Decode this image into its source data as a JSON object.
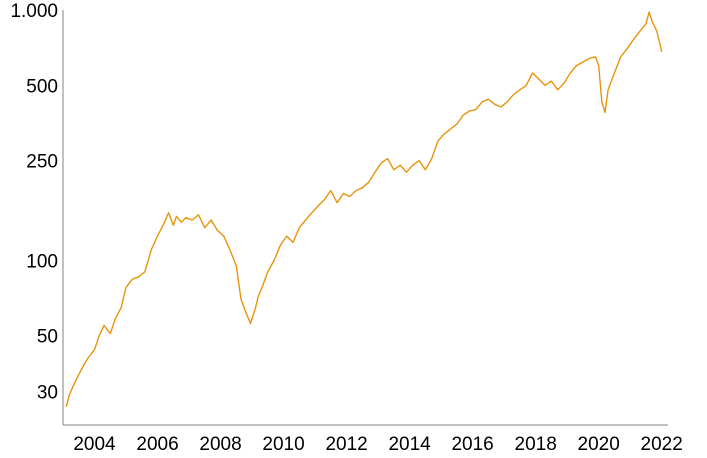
{
  "chart_data": {
    "type": "line",
    "title": "",
    "xlabel": "",
    "ylabel": "",
    "y_scale": "log",
    "xlim": [
      2003.0,
      2022.2
    ],
    "ylim": [
      22,
      1000
    ],
    "x_ticks": [
      2004,
      2006,
      2008,
      2010,
      2012,
      2014,
      2016,
      2018,
      2020,
      2022
    ],
    "y_ticks": [
      {
        "value": 30,
        "label": "30"
      },
      {
        "value": 50,
        "label": "50"
      },
      {
        "value": 100,
        "label": "100"
      },
      {
        "value": 250,
        "label": "250"
      },
      {
        "value": 500,
        "label": "500"
      },
      {
        "value": 1000,
        "label": "1.000"
      }
    ],
    "grid": false,
    "legend": "none",
    "line_color": "#E8940B",
    "series": [
      {
        "x": [
          2003.1,
          2003.2,
          2003.35,
          2003.55,
          2003.75,
          2004.0,
          2004.15,
          2004.3,
          2004.5,
          2004.65,
          2004.85,
          2005.0,
          2005.2,
          2005.4,
          2005.6,
          2005.8,
          2006.0,
          2006.2,
          2006.35,
          2006.5,
          2006.6,
          2006.75,
          2006.9,
          2007.1,
          2007.3,
          2007.5,
          2007.7,
          2007.9,
          2008.1,
          2008.3,
          2008.5,
          2008.65,
          2008.8,
          2008.95,
          2009.1,
          2009.2,
          2009.35,
          2009.5,
          2009.7,
          2009.9,
          2010.1,
          2010.3,
          2010.5,
          2010.7,
          2010.9,
          2011.1,
          2011.3,
          2011.5,
          2011.7,
          2011.9,
          2012.1,
          2012.3,
          2012.5,
          2012.7,
          2012.9,
          2013.1,
          2013.3,
          2013.5,
          2013.7,
          2013.9,
          2014.1,
          2014.3,
          2014.5,
          2014.7,
          2014.9,
          2015.1,
          2015.3,
          2015.5,
          2015.7,
          2015.9,
          2016.1,
          2016.3,
          2016.5,
          2016.7,
          2016.9,
          2017.1,
          2017.3,
          2017.5,
          2017.7,
          2017.9,
          2018.1,
          2018.3,
          2018.5,
          2018.7,
          2018.9,
          2019.1,
          2019.3,
          2019.5,
          2019.7,
          2019.9,
          2020.0,
          2020.1,
          2020.2,
          2020.3,
          2020.5,
          2020.7,
          2020.9,
          2021.1,
          2021.3,
          2021.5,
          2021.6,
          2021.7,
          2021.85,
          2022.0
        ],
        "y": [
          26,
          29,
          32,
          36,
          40,
          44,
          50,
          55,
          51,
          58,
          65,
          78,
          84,
          86,
          90,
          110,
          125,
          140,
          155,
          138,
          150,
          142,
          148,
          145,
          152,
          135,
          145,
          132,
          125,
          110,
          95,
          70,
          62,
          56,
          64,
          72,
          80,
          90,
          100,
          115,
          125,
          118,
          135,
          145,
          155,
          165,
          175,
          190,
          170,
          185,
          180,
          190,
          195,
          205,
          225,
          245,
          255,
          230,
          240,
          225,
          240,
          250,
          230,
          255,
          300,
          320,
          335,
          350,
          380,
          395,
          400,
          430,
          440,
          420,
          410,
          430,
          460,
          480,
          500,
          560,
          530,
          500,
          520,
          480,
          510,
          560,
          600,
          620,
          640,
          650,
          600,
          430,
          390,
          480,
          560,
          650,
          700,
          760,
          820,
          880,
          980,
          900,
          820,
          680
        ]
      }
    ]
  }
}
